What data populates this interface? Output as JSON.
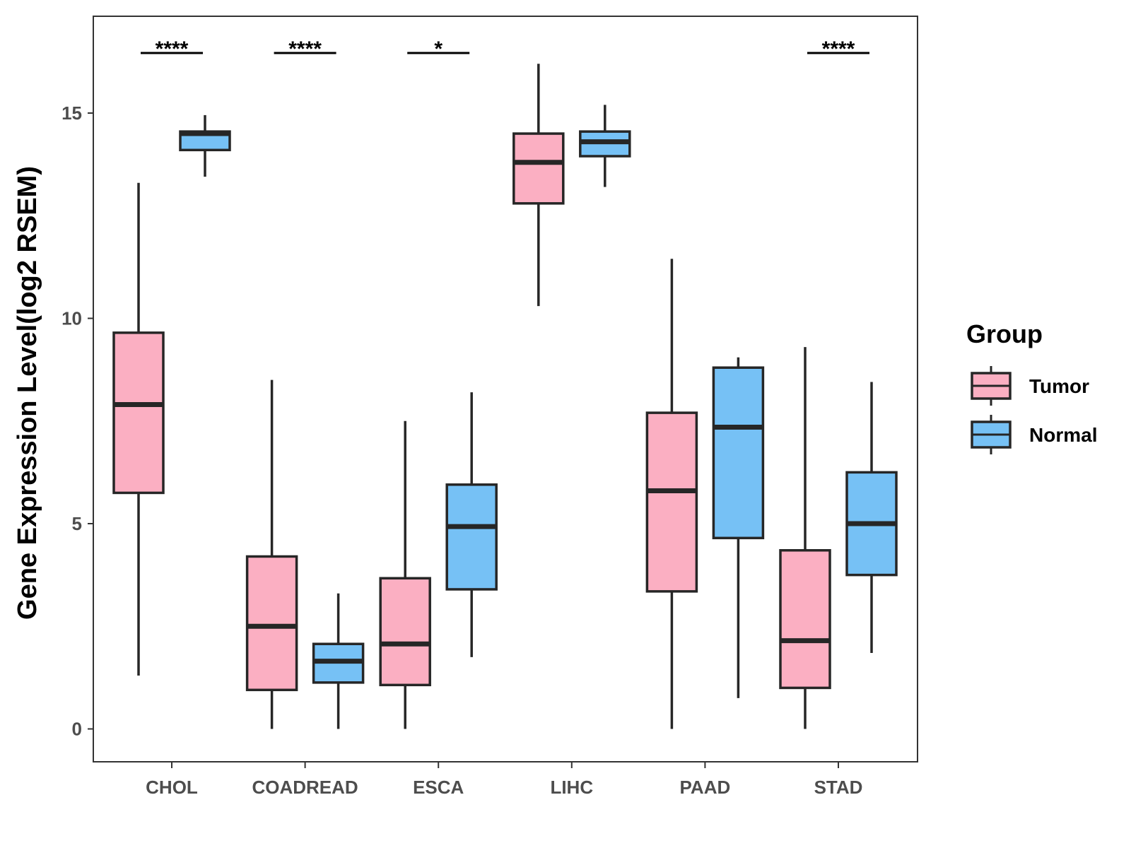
{
  "chart_data": {
    "type": "boxplot",
    "title": "",
    "xlabel": "",
    "ylabel": "Gene Expression Level(log2 RSEM)",
    "ylim": [
      -0.8,
      17.4
    ],
    "yticks": [
      0,
      5,
      10,
      15
    ],
    "grid": false,
    "legend": {
      "title": "Group",
      "position": "right",
      "items": [
        {
          "name": "Tumor",
          "color": "#fbafc2"
        },
        {
          "name": "Normal",
          "color": "#76c1f5"
        }
      ]
    },
    "categories": [
      "CHOL",
      "COADREAD",
      "ESCA",
      "LIHC",
      "PAAD",
      "STAD"
    ],
    "series": [
      {
        "name": "Tumor",
        "color": "#fbafc2",
        "boxes": [
          {
            "min": 1.3,
            "q1": 5.75,
            "median": 7.9,
            "q3": 9.65,
            "max": 13.3
          },
          {
            "min": 0.0,
            "q1": 0.95,
            "median": 2.5,
            "q3": 4.2,
            "max": 8.5
          },
          {
            "min": 0.0,
            "q1": 1.07,
            "median": 2.07,
            "q3": 3.67,
            "max": 7.5
          },
          {
            "min": 10.3,
            "q1": 12.8,
            "median": 13.8,
            "q3": 14.5,
            "max": 16.2
          },
          {
            "min": 0.0,
            "q1": 3.35,
            "median": 5.8,
            "q3": 7.7,
            "max": 11.45
          },
          {
            "min": 0.0,
            "q1": 1.0,
            "median": 2.15,
            "q3": 4.35,
            "max": 9.3
          }
        ]
      },
      {
        "name": "Normal",
        "color": "#76c1f5",
        "boxes": [
          {
            "min": 13.45,
            "q1": 14.1,
            "median": 14.5,
            "q3": 14.55,
            "max": 14.95
          },
          {
            "min": 0.0,
            "q1": 1.13,
            "median": 1.65,
            "q3": 2.07,
            "max": 3.3
          },
          {
            "min": 1.75,
            "q1": 3.4,
            "median": 4.93,
            "q3": 5.95,
            "max": 8.2
          },
          {
            "min": 13.2,
            "q1": 13.95,
            "median": 14.3,
            "q3": 14.55,
            "max": 15.2
          },
          {
            "min": 0.75,
            "q1": 4.65,
            "median": 7.35,
            "q3": 8.8,
            "max": 9.05
          },
          {
            "min": 1.85,
            "q1": 3.75,
            "median": 5.0,
            "q3": 6.25,
            "max": 8.45
          }
        ]
      }
    ],
    "significance": [
      {
        "category": "CHOL",
        "label": "****"
      },
      {
        "category": "COADREAD",
        "label": "****"
      },
      {
        "category": "ESCA",
        "label": "*"
      },
      {
        "category": "STAD",
        "label": "****"
      }
    ]
  }
}
